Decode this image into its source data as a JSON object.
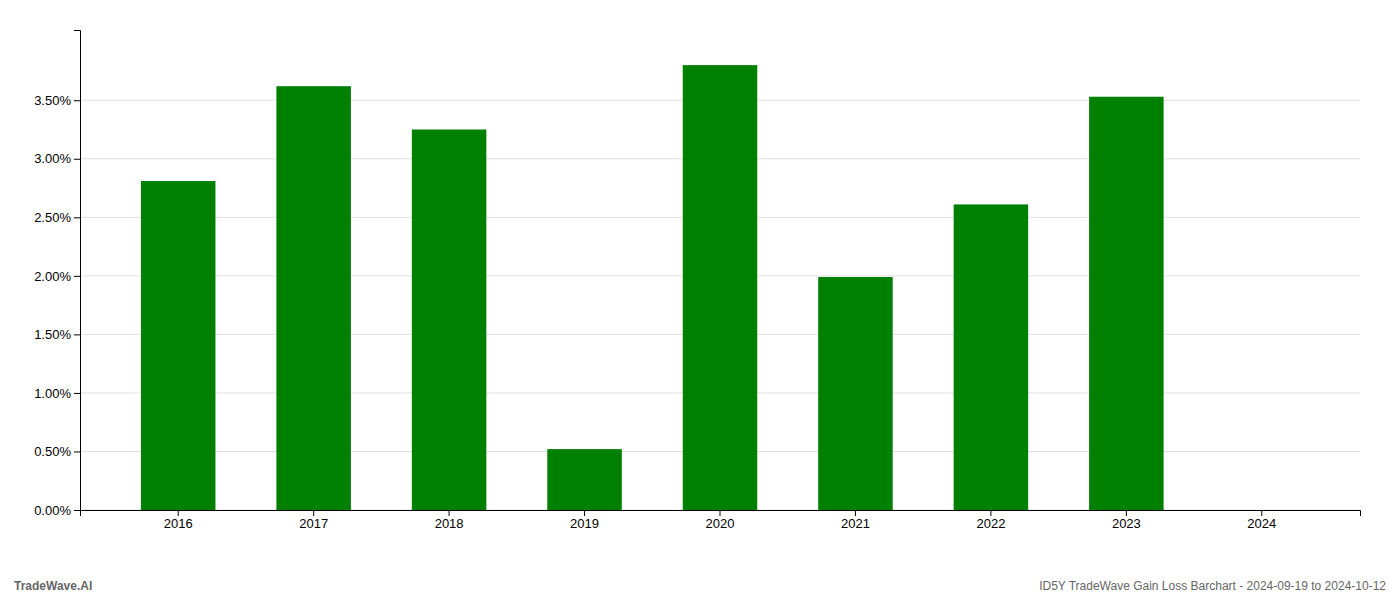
{
  "chart_data": {
    "type": "bar",
    "categories": [
      "2016",
      "2017",
      "2018",
      "2019",
      "2020",
      "2021",
      "2022",
      "2023",
      "2024"
    ],
    "values": [
      0.0281,
      0.0362,
      0.0325,
      0.0052,
      0.038,
      0.0199,
      0.0261,
      0.0353,
      0.0
    ],
    "color": "#008000",
    "ylim": [
      0,
      0.041
    ],
    "yticks": [
      {
        "value": 0.0,
        "label": "0.00%"
      },
      {
        "value": 0.005,
        "label": "0.50%"
      },
      {
        "value": 0.01,
        "label": "1.00%"
      },
      {
        "value": 0.015,
        "label": "1.50%"
      },
      {
        "value": 0.02,
        "label": "2.00%"
      },
      {
        "value": 0.025,
        "label": "2.50%"
      },
      {
        "value": 0.03,
        "label": "3.00%"
      },
      {
        "value": 0.035,
        "label": "3.50%"
      }
    ],
    "grid": true,
    "annotations": [
      "TradeWave.AI",
      "ID5Y TradeWave Gain Loss Barchart - 2024-09-19 to 2024-10-12"
    ]
  }
}
